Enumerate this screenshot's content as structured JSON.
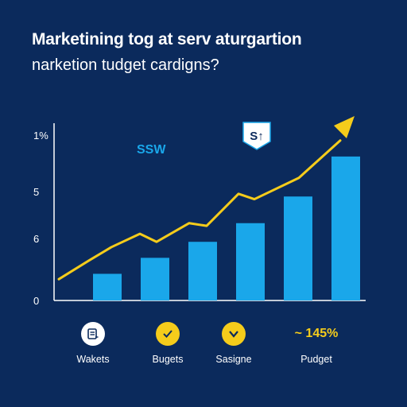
{
  "title": "Marketining tog at serv aturgartion",
  "subtitle": "narketion tudget cardigns?",
  "chart_data": {
    "type": "bar",
    "ytick_labels": [
      "1%",
      "5",
      "6",
      "0"
    ],
    "series_label": "SSW",
    "marker_label": "S↑",
    "bars": {
      "values": [
        1.0,
        1.6,
        2.2,
        2.9,
        3.9,
        5.4
      ]
    },
    "trend_line": {
      "values": [
        0.8,
        1.5,
        2.0,
        2.5,
        2.2,
        2.9,
        2.8,
        4.0,
        3.8,
        4.6,
        6.0
      ]
    },
    "ylim": [
      0,
      6.5
    ],
    "colors": {
      "bars": "#1aa7ea",
      "line": "#f5cc1b",
      "axis": "#ffffff"
    }
  },
  "footer": {
    "items": [
      {
        "icon": "document-icon",
        "label": "Wakets"
      },
      {
        "icon": "check-badge-icon",
        "label": "Bugets"
      },
      {
        "icon": "chevron-badge-icon",
        "label": "Sasigne"
      },
      {
        "icon": "",
        "label": "Pudget",
        "value": "~ 145%"
      }
    ]
  }
}
